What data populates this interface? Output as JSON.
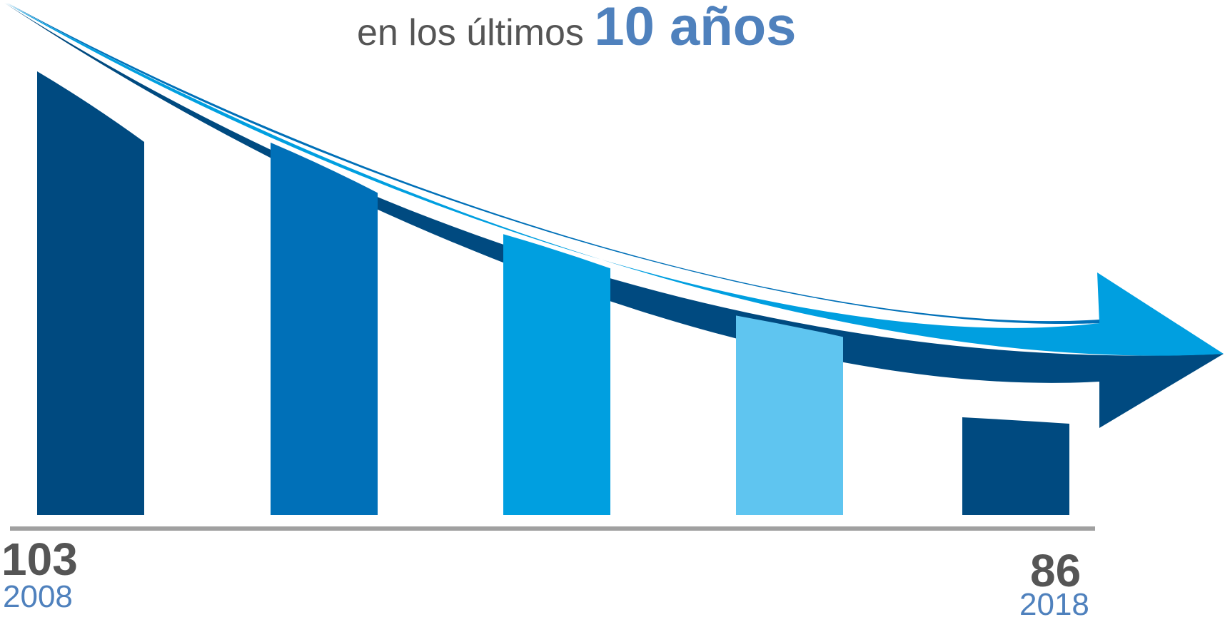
{
  "headline": {
    "prefix": "en los últimos",
    "highlight": "10 años"
  },
  "colors": {
    "text_gray": "#555555",
    "accent": "#4f81bd",
    "dark_navy": "#004a80",
    "mid_blue": "#0070b8",
    "bright_blue": "#009fe0",
    "light_blue": "#5fc5f0",
    "axis": "#a0a0a0"
  },
  "chart_data": {
    "type": "bar",
    "title": "",
    "categories": [
      "",
      "",
      "",
      "",
      ""
    ],
    "values": [
      103,
      99.5,
      95,
      91,
      86
    ],
    "bar_colors": [
      "#004a80",
      "#0070b8",
      "#009fe0",
      "#5fc5f0",
      "#004a80"
    ],
    "start": {
      "value": "103",
      "year": "2008"
    },
    "end": {
      "value": "86",
      "year": "2018"
    },
    "trend": "decreasing",
    "grid": false,
    "legend": "none"
  }
}
